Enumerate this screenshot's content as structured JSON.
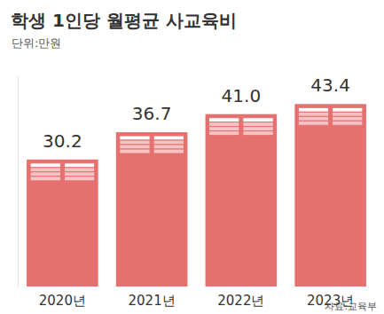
{
  "chart_data": {
    "type": "bar",
    "title": "학생 1인당 월평균 사교육비",
    "subtitle": "단위:만원",
    "source": "자료:교육부",
    "categories": [
      "2020년",
      "2021년",
      "2022년",
      "2023년"
    ],
    "values": [
      30.2,
      36.7,
      41.0,
      43.4
    ],
    "value_labels": [
      "30.2",
      "36.7",
      "41.0",
      "43.4"
    ],
    "color": "#e5706f",
    "ylim": [
      0,
      50
    ],
    "yticks": [],
    "grid": false,
    "data_labels": true,
    "tick_labels": "x"
  }
}
